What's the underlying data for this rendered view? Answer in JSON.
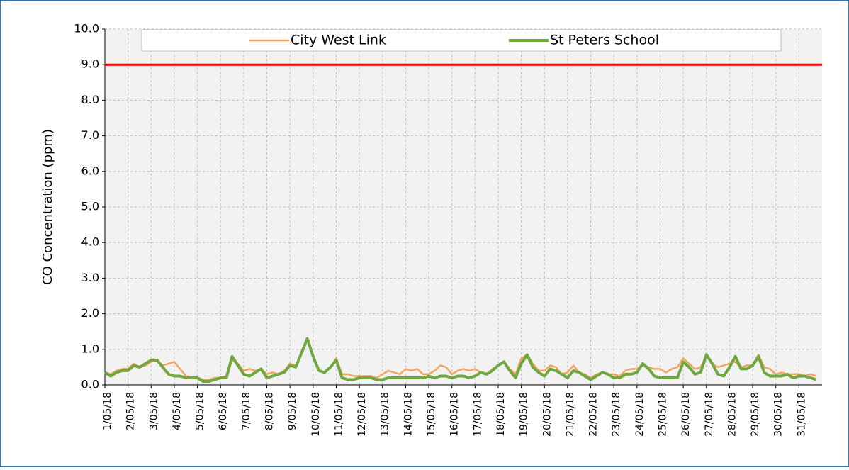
{
  "chart_data": {
    "type": "line",
    "y_label": "CO Concentration (ppm)",
    "categories": [
      "1/05/18",
      null,
      null,
      null,
      "2/05/18",
      null,
      null,
      null,
      "3/05/18",
      null,
      null,
      null,
      "4/05/18",
      null,
      null,
      null,
      "5/05/18",
      null,
      null,
      null,
      "6/05/18",
      null,
      null,
      null,
      "7/05/18",
      null,
      null,
      null,
      "8/05/18",
      null,
      null,
      null,
      "9/05/18",
      null,
      null,
      null,
      "10/05/18",
      null,
      null,
      null,
      "11/05/18",
      null,
      null,
      null,
      "12/05/18",
      null,
      null,
      null,
      "13/05/18",
      null,
      null,
      null,
      "14/05/18",
      null,
      null,
      null,
      "15/05/18",
      null,
      null,
      null,
      "16/05/18",
      null,
      null,
      null,
      "17/05/18",
      null,
      null,
      null,
      "18/05/18",
      null,
      null,
      null,
      "19/05/18",
      null,
      null,
      null,
      "20/05/18",
      null,
      null,
      null,
      "21/05/18",
      null,
      null,
      null,
      "22/05/18",
      null,
      null,
      null,
      "23/05/18",
      null,
      null,
      null,
      "24/05/18",
      null,
      null,
      null,
      "25/05/18",
      null,
      null,
      null,
      "26/05/18",
      null,
      null,
      null,
      "27/05/18",
      null,
      null,
      null,
      "28/05/18",
      null,
      null,
      null,
      "29/05/18",
      null,
      null,
      null,
      "30/05/18",
      null,
      null,
      null,
      "31/05/18",
      null,
      null,
      null
    ],
    "series": [
      {
        "name": "City West Link",
        "color": "#f4a460",
        "width": 2.5,
        "values": [
          0.35,
          0.3,
          0.4,
          0.45,
          0.45,
          0.6,
          0.5,
          0.55,
          0.65,
          0.7,
          0.55,
          0.6,
          0.65,
          0.45,
          0.25,
          0.2,
          0.2,
          0.15,
          0.15,
          0.2,
          0.2,
          0.25,
          0.7,
          0.6,
          0.4,
          0.45,
          0.4,
          0.45,
          0.3,
          0.35,
          0.3,
          0.4,
          0.6,
          0.55,
          0.9,
          1.3,
          0.8,
          0.4,
          0.35,
          0.5,
          0.75,
          0.3,
          0.3,
          0.25,
          0.25,
          0.25,
          0.25,
          0.2,
          0.3,
          0.4,
          0.35,
          0.3,
          0.45,
          0.4,
          0.45,
          0.3,
          0.3,
          0.4,
          0.55,
          0.5,
          0.3,
          0.4,
          0.45,
          0.4,
          0.45,
          0.35,
          0.3,
          0.45,
          0.55,
          0.65,
          0.45,
          0.3,
          0.75,
          0.85,
          0.6,
          0.4,
          0.4,
          0.55,
          0.5,
          0.3,
          0.35,
          0.55,
          0.35,
          0.3,
          0.2,
          0.3,
          0.35,
          0.3,
          0.3,
          0.25,
          0.4,
          0.45,
          0.45,
          0.55,
          0.5,
          0.45,
          0.45,
          0.35,
          0.45,
          0.5,
          0.75,
          0.6,
          0.45,
          0.5,
          0.8,
          0.6,
          0.5,
          0.55,
          0.6,
          0.65,
          0.5,
          0.55,
          0.55,
          0.85,
          0.5,
          0.45,
          0.3,
          0.35,
          0.3,
          0.3,
          0.3,
          0.25,
          0.3,
          0.25
        ]
      },
      {
        "name": "St Peters School",
        "color": "#70a83f",
        "width": 4,
        "values": [
          0.35,
          0.25,
          0.35,
          0.4,
          0.4,
          0.55,
          0.5,
          0.6,
          0.7,
          0.7,
          0.5,
          0.3,
          0.25,
          0.25,
          0.2,
          0.2,
          0.2,
          0.1,
          0.1,
          0.15,
          0.2,
          0.2,
          0.8,
          0.55,
          0.3,
          0.25,
          0.35,
          0.45,
          0.2,
          0.25,
          0.3,
          0.35,
          0.55,
          0.5,
          0.9,
          1.3,
          0.8,
          0.4,
          0.35,
          0.5,
          0.7,
          0.2,
          0.15,
          0.15,
          0.2,
          0.2,
          0.2,
          0.15,
          0.15,
          0.2,
          0.2,
          0.2,
          0.2,
          0.2,
          0.2,
          0.2,
          0.25,
          0.2,
          0.25,
          0.25,
          0.2,
          0.25,
          0.25,
          0.2,
          0.25,
          0.35,
          0.3,
          0.4,
          0.55,
          0.65,
          0.4,
          0.2,
          0.6,
          0.85,
          0.5,
          0.35,
          0.25,
          0.45,
          0.4,
          0.3,
          0.2,
          0.4,
          0.35,
          0.25,
          0.15,
          0.25,
          0.35,
          0.3,
          0.2,
          0.2,
          0.3,
          0.3,
          0.35,
          0.6,
          0.45,
          0.25,
          0.2,
          0.2,
          0.2,
          0.2,
          0.65,
          0.5,
          0.3,
          0.35,
          0.85,
          0.6,
          0.3,
          0.25,
          0.5,
          0.8,
          0.45,
          0.45,
          0.55,
          0.8,
          0.35,
          0.25,
          0.25,
          0.25,
          0.3,
          0.2,
          0.25,
          0.25,
          0.2,
          0.15
        ]
      }
    ],
    "reference_line": {
      "value": 9,
      "color": "#ff0000"
    },
    "ylim": [
      0,
      10
    ],
    "yticks": [
      {
        "value": 0,
        "label": "0.0"
      },
      {
        "value": 1,
        "label": "1.0"
      },
      {
        "value": 2,
        "label": "2.0"
      },
      {
        "value": 3,
        "label": "3.0"
      },
      {
        "value": 4,
        "label": "4.0"
      },
      {
        "value": 5,
        "label": "5.0"
      },
      {
        "value": 6,
        "label": "6.0"
      },
      {
        "value": 7,
        "label": "7.0"
      },
      {
        "value": 8,
        "label": "8.0"
      },
      {
        "value": 9,
        "label": "9.0"
      },
      {
        "value": 10,
        "label": "10.0"
      }
    ],
    "grid": true,
    "legend": "top"
  }
}
